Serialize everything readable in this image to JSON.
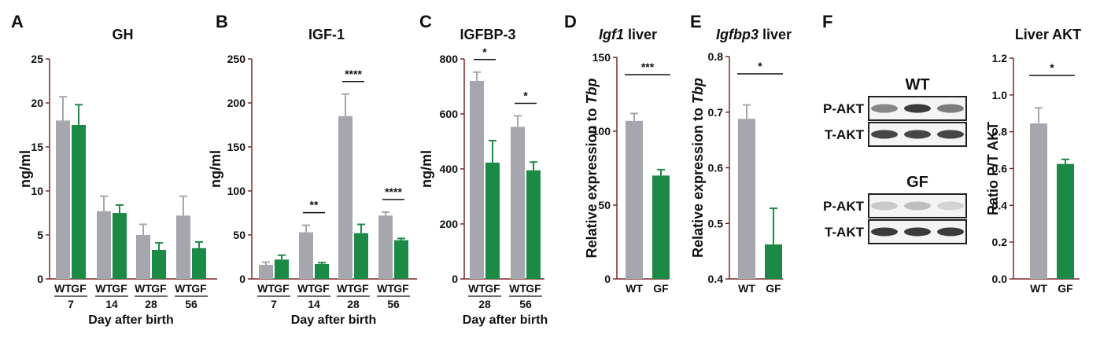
{
  "colors": {
    "wt": "#a6a6ae",
    "gf": "#1b8a45",
    "axis": "#7a2a2a",
    "text": "#111111"
  },
  "chart_data": [
    {
      "panel": "A",
      "type": "bar",
      "title": "GH",
      "ylabel": "ng/ml",
      "xlabel": "Day after birth",
      "ylim": [
        0,
        25
      ],
      "yticks": [
        "0",
        "5",
        "10",
        "15",
        "20",
        "25"
      ],
      "groups": [
        "7",
        "14",
        "28",
        "56"
      ],
      "bar_labels": [
        "WT",
        "GF"
      ],
      "series": [
        {
          "name": "WT",
          "values": [
            18.0,
            7.7,
            5.0,
            7.2
          ],
          "errors": [
            2.7,
            1.7,
            1.2,
            2.2
          ]
        },
        {
          "name": "GF",
          "values": [
            17.5,
            7.5,
            3.3,
            3.5
          ],
          "errors": [
            2.3,
            0.9,
            0.8,
            0.7
          ]
        }
      ],
      "significance": []
    },
    {
      "panel": "B",
      "type": "bar",
      "title": "IGF-1",
      "ylabel": "ng/ml",
      "xlabel": "Day after birth",
      "ylim": [
        0,
        250
      ],
      "yticks": [
        "0",
        "50",
        "100",
        "150",
        "200",
        "250"
      ],
      "groups": [
        "7",
        "14",
        "28",
        "56"
      ],
      "bar_labels": [
        "WT",
        "GF"
      ],
      "series": [
        {
          "name": "WT",
          "values": [
            16,
            53,
            185,
            72
          ],
          "errors": [
            3,
            8,
            25,
            4
          ]
        },
        {
          "name": "GF",
          "values": [
            22,
            17,
            52,
            44
          ],
          "errors": [
            5,
            1.5,
            10,
            2
          ]
        }
      ],
      "significance": [
        {
          "group": 1,
          "label": "**"
        },
        {
          "group": 2,
          "label": "****"
        },
        {
          "group": 3,
          "label": "****"
        }
      ]
    },
    {
      "panel": "C",
      "type": "bar",
      "title": "IGFBP-3",
      "ylabel": "ng/ml",
      "xlabel": "Day after birth",
      "ylim": [
        0,
        800
      ],
      "yticks": [
        "0",
        "200",
        "400",
        "600",
        "800"
      ],
      "groups": [
        "28",
        "56"
      ],
      "bar_labels": [
        "WT",
        "GF"
      ],
      "series": [
        {
          "name": "WT",
          "values": [
            720,
            553
          ],
          "errors": [
            32,
            40
          ]
        },
        {
          "name": "GF",
          "values": [
            423,
            395
          ],
          "errors": [
            80,
            30
          ]
        }
      ],
      "significance": [
        {
          "group": 0,
          "label": "*"
        },
        {
          "group": 1,
          "label": "*"
        }
      ]
    },
    {
      "panel": "D",
      "type": "bar",
      "title_italic": "Igf1",
      "title_rest": " liver",
      "ylabel_prefix": "Relative expression to ",
      "ylabel_italic": "Tbp",
      "ylim": [
        0,
        150
      ],
      "yticks": [
        "0",
        "50",
        "100",
        "150"
      ],
      "categories": [
        "WT",
        "GF"
      ],
      "values": [
        107,
        70
      ],
      "errors": [
        5,
        4
      ],
      "significance": {
        "label": "***"
      }
    },
    {
      "panel": "E",
      "type": "bar",
      "title_italic": "Igfbp3",
      "title_rest": " liver",
      "ylabel_prefix": "Relative expression to ",
      "ylabel_italic": "Tbp",
      "ylim": [
        0.4,
        0.8
      ],
      "yticks": [
        "0.4",
        "0.5",
        "0.6",
        "0.7",
        "0.8"
      ],
      "categories": [
        "WT",
        "GF"
      ],
      "values": [
        0.688,
        0.462
      ],
      "errors": [
        0.025,
        0.065
      ],
      "significance": {
        "label": "*"
      }
    },
    {
      "panel": "F",
      "type": "bar",
      "title": "Liver AKT",
      "ylabel": "Ratio P/T AKT",
      "ylim": [
        0,
        1.2
      ],
      "yticks": [
        "0.0",
        "0.2",
        "0.4",
        "0.6",
        "0.8",
        "1.0",
        "1.2"
      ],
      "categories": [
        "WT",
        "GF"
      ],
      "values": [
        0.845,
        0.625
      ],
      "errors": [
        0.085,
        0.025
      ],
      "significance": {
        "label": "*"
      }
    }
  ],
  "blot": {
    "groups": [
      {
        "label": "WT",
        "rows": [
          {
            "label": "P-AKT",
            "intensity": [
              0.55,
              0.9,
              0.6
            ]
          },
          {
            "label": "T-AKT",
            "intensity": [
              0.85,
              0.85,
              0.85
            ]
          }
        ]
      },
      {
        "label": "GF",
        "rows": [
          {
            "label": "P-AKT",
            "intensity": [
              0.25,
              0.3,
              0.2
            ]
          },
          {
            "label": "T-AKT",
            "intensity": [
              0.9,
              0.9,
              0.9
            ]
          }
        ]
      }
    ]
  }
}
